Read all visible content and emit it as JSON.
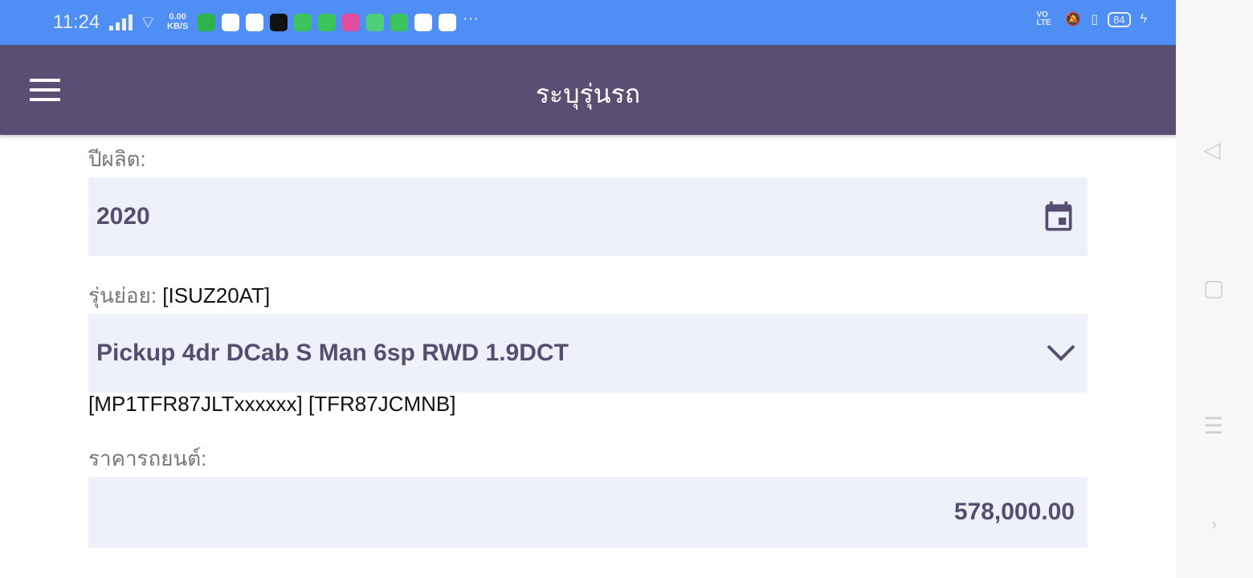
{
  "status_bar": {
    "time": "11:24",
    "net_speed": "0.00",
    "net_unit": "KB/S",
    "more": "···",
    "volte": "VO LTE",
    "battery": "84",
    "app_icons": [
      "#2db34a",
      "#ffffff",
      "#ffffff",
      "#111111",
      "#3cc35c",
      "#3cc35c",
      "#e04ea0",
      "#4cd07a",
      "#3cc35c",
      "#ffffff",
      "#ffffff"
    ]
  },
  "app_bar": {
    "title": "ระบุรุ่นรถ"
  },
  "form": {
    "year_label": "ปีผลิต:",
    "year_value": "2020",
    "submodel_label": "รุ่นย่อย:",
    "submodel_code": "[ISUZ20AT]",
    "submodel_value": "Pickup 4dr DCab S Man 6sp RWD 1.9DCT",
    "codes": "[MP1TFR87JLTxxxxxx] [TFR87JCMNB]",
    "price_label": "ราคารถยนต์:",
    "price_value": "578,000.00"
  },
  "colors": {
    "status": "#4e8ef5",
    "appbar": "#5a4e74",
    "field_bg": "#eff1fa",
    "field_text": "#574d71"
  }
}
